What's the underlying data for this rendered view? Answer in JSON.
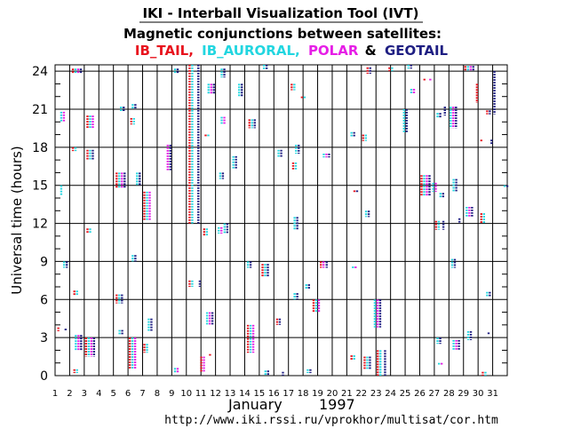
{
  "header": {
    "tool_title": "IKI - Interball Visualization Tool (IVT)",
    "subtitle": "Magnetic conjunctions between satellites:",
    "legend_ib_tail": "IB_TAIL,",
    "legend_ib_auroral": "IB_AURORAL,",
    "legend_polar": "POLAR",
    "legend_sep": "&",
    "legend_geotail": "GEOTAIL"
  },
  "footer": {
    "month_label": "January",
    "year_label": "1997",
    "url": "http://www.iki.rssi.ru/vprokhor/multisat/cor.htm"
  },
  "colors": {
    "IB_TAIL": "#e8141e",
    "IB_AURORAL": "#22d6e0",
    "POLAR": "#e61ee6",
    "GEOTAIL": "#1e1e82"
  },
  "chart_data": {
    "type": "scatter",
    "title": "Magnetic conjunctions between satellites:",
    "ylabel": "Universal time (hours)",
    "xlabel": "January 1997",
    "x_ticks": [
      1,
      2,
      3,
      4,
      5,
      6,
      7,
      8,
      9,
      10,
      11,
      12,
      13,
      14,
      15,
      16,
      17,
      18,
      19,
      20,
      21,
      22,
      23,
      24,
      25,
      26,
      27,
      28,
      29,
      30,
      31
    ],
    "y_ticks": [
      0,
      3,
      6,
      9,
      12,
      15,
      18,
      21,
      24
    ],
    "xlim": [
      1,
      32
    ],
    "ylim": [
      0,
      24.5
    ],
    "grid": true,
    "series_order": [
      "IB_TAIL",
      "IB_AURORAL",
      "POLAR",
      "GEOTAIL"
    ],
    "events": [
      {
        "day": 1.1,
        "start": 3.5,
        "end": 3.8,
        "sats": [
          "IB_TAIL"
        ]
      },
      {
        "day": 1.3,
        "start": 14.2,
        "end": 15.0,
        "sats": [
          "IB_AURORAL"
        ]
      },
      {
        "day": 1.3,
        "start": 20.0,
        "end": 20.8,
        "sats": [
          "IB_AURORAL",
          "POLAR"
        ]
      },
      {
        "day": 1.5,
        "start": 8.5,
        "end": 9.0,
        "sats": [
          "IB_AURORAL",
          "GEOTAIL"
        ]
      },
      {
        "day": 1.6,
        "start": 3.5,
        "end": 3.7,
        "sats": [
          "GEOTAIL"
        ]
      },
      {
        "day": 2.1,
        "start": 23.8,
        "end": 24.2,
        "sats": [
          "IB_TAIL",
          "IB_AURORAL",
          "POLAR",
          "GEOTAIL"
        ]
      },
      {
        "day": 2.1,
        "start": 17.7,
        "end": 18.0,
        "sats": [
          "IB_TAIL",
          "IB_AURORAL"
        ]
      },
      {
        "day": 2.2,
        "start": 6.3,
        "end": 6.7,
        "sats": [
          "IB_TAIL",
          "IB_AURORAL"
        ]
      },
      {
        "day": 2.3,
        "start": 2.0,
        "end": 3.2,
        "sats": [
          "IB_AURORAL",
          "POLAR",
          "GEOTAIL"
        ]
      },
      {
        "day": 2.2,
        "start": 0.2,
        "end": 0.5,
        "sats": [
          "IB_TAIL",
          "IB_AURORAL"
        ]
      },
      {
        "day": 3.1,
        "start": 19.5,
        "end": 20.5,
        "sats": [
          "IB_TAIL",
          "IB_AURORAL",
          "POLAR"
        ]
      },
      {
        "day": 3.1,
        "start": 17.0,
        "end": 17.8,
        "sats": [
          "IB_TAIL",
          "IB_AURORAL",
          "GEOTAIL"
        ]
      },
      {
        "day": 3.1,
        "start": 11.2,
        "end": 11.6,
        "sats": [
          "IB_TAIL",
          "IB_AURORAL"
        ]
      },
      {
        "day": 3.0,
        "start": 1.5,
        "end": 3.0,
        "sats": [
          "IB_TAIL",
          "IB_AURORAL",
          "POLAR",
          "GEOTAIL"
        ]
      },
      {
        "day": 5.1,
        "start": 14.8,
        "end": 16.0,
        "sats": [
          "IB_TAIL",
          "IB_AURORAL",
          "POLAR",
          "GEOTAIL"
        ]
      },
      {
        "day": 5.1,
        "start": 5.7,
        "end": 6.4,
        "sats": [
          "IB_TAIL",
          "IB_AURORAL",
          "GEOTAIL"
        ]
      },
      {
        "day": 5.3,
        "start": 3.2,
        "end": 3.6,
        "sats": [
          "IB_AURORAL",
          "GEOTAIL"
        ]
      },
      {
        "day": 5.4,
        "start": 20.8,
        "end": 21.2,
        "sats": [
          "IB_AURORAL",
          "GEOTAIL"
        ]
      },
      {
        "day": 6.0,
        "start": 0.5,
        "end": 3.0,
        "sats": [
          "IB_TAIL",
          "IB_AURORAL",
          "POLAR"
        ]
      },
      {
        "day": 6.1,
        "start": 19.8,
        "end": 20.3,
        "sats": [
          "IB_TAIL",
          "IB_AURORAL"
        ]
      },
      {
        "day": 6.2,
        "start": 21.0,
        "end": 21.4,
        "sats": [
          "IB_AURORAL",
          "GEOTAIL"
        ]
      },
      {
        "day": 6.2,
        "start": 9.0,
        "end": 9.5,
        "sats": [
          "IB_AURORAL",
          "GEOTAIL"
        ]
      },
      {
        "day": 6.5,
        "start": 15.0,
        "end": 16.0,
        "sats": [
          "IB_AURORAL",
          "GEOTAIL"
        ]
      },
      {
        "day": 7.0,
        "start": 12.2,
        "end": 14.5,
        "sats": [
          "IB_TAIL",
          "IB_AURORAL",
          "POLAR"
        ]
      },
      {
        "day": 7.0,
        "start": 1.8,
        "end": 2.5,
        "sats": [
          "IB_TAIL",
          "IB_AURORAL"
        ]
      },
      {
        "day": 7.3,
        "start": 3.5,
        "end": 4.5,
        "sats": [
          "IB_AURORAL",
          "GEOTAIL"
        ]
      },
      {
        "day": 8.6,
        "start": 16.2,
        "end": 18.2,
        "sats": [
          "POLAR",
          "GEOTAIL"
        ]
      },
      {
        "day": 9.1,
        "start": 23.8,
        "end": 24.2,
        "sats": [
          "IB_AURORAL",
          "GEOTAIL"
        ]
      },
      {
        "day": 9.1,
        "start": 0.2,
        "end": 0.6,
        "sats": [
          "IB_AURORAL",
          "POLAR"
        ]
      },
      {
        "day": 10.1,
        "start": 12.0,
        "end": 24.5,
        "sats": [
          "IB_TAIL",
          "IB_AURORAL"
        ]
      },
      {
        "day": 10.7,
        "start": 12.0,
        "end": 24.5,
        "sats": [
          "GEOTAIL"
        ]
      },
      {
        "day": 10.1,
        "start": 7.0,
        "end": 7.5,
        "sats": [
          "IB_TAIL",
          "IB_AURORAL"
        ]
      },
      {
        "day": 10.8,
        "start": 7.0,
        "end": 7.5,
        "sats": [
          "GEOTAIL"
        ]
      },
      {
        "day": 10.9,
        "start": 0.3,
        "end": 1.5,
        "sats": [
          "IB_TAIL",
          "POLAR"
        ]
      },
      {
        "day": 11.1,
        "start": 11.0,
        "end": 11.6,
        "sats": [
          "IB_TAIL",
          "IB_AURORAL"
        ]
      },
      {
        "day": 11.2,
        "start": 18.8,
        "end": 19.0,
        "sats": [
          "IB_TAIL",
          "IB_AURORAL"
        ]
      },
      {
        "day": 11.3,
        "start": 4.0,
        "end": 5.0,
        "sats": [
          "IB_AURORAL",
          "POLAR",
          "GEOTAIL"
        ]
      },
      {
        "day": 11.4,
        "start": 22.2,
        "end": 23.0,
        "sats": [
          "IB_AURORAL",
          "POLAR",
          "GEOTAIL"
        ]
      },
      {
        "day": 11.5,
        "start": 1.5,
        "end": 1.7,
        "sats": [
          "IB_TAIL"
        ]
      },
      {
        "day": 12.1,
        "start": 11.2,
        "end": 11.7,
        "sats": [
          "IB_AURORAL",
          "POLAR"
        ]
      },
      {
        "day": 12.2,
        "start": 15.5,
        "end": 16.0,
        "sats": [
          "IB_AURORAL",
          "GEOTAIL"
        ]
      },
      {
        "day": 12.3,
        "start": 19.8,
        "end": 20.4,
        "sats": [
          "IB_AURORAL",
          "POLAR"
        ]
      },
      {
        "day": 12.3,
        "start": 23.5,
        "end": 24.2,
        "sats": [
          "IB_AURORAL",
          "GEOTAIL"
        ]
      },
      {
        "day": 12.5,
        "start": 11.2,
        "end": 12.0,
        "sats": [
          "IB_AURORAL",
          "GEOTAIL"
        ]
      },
      {
        "day": 13.1,
        "start": 16.3,
        "end": 17.3,
        "sats": [
          "IB_AURORAL",
          "GEOTAIL"
        ]
      },
      {
        "day": 13.5,
        "start": 22.0,
        "end": 23.0,
        "sats": [
          "IB_AURORAL",
          "GEOTAIL"
        ]
      },
      {
        "day": 14.1,
        "start": 8.5,
        "end": 9.0,
        "sats": [
          "IB_AURORAL",
          "GEOTAIL"
        ]
      },
      {
        "day": 14.2,
        "start": 19.5,
        "end": 20.2,
        "sats": [
          "IB_TAIL",
          "IB_AURORAL",
          "GEOTAIL"
        ]
      },
      {
        "day": 14.1,
        "start": 1.8,
        "end": 4.0,
        "sats": [
          "IB_TAIL",
          "IB_AURORAL",
          "POLAR"
        ]
      },
      {
        "day": 15.1,
        "start": 7.8,
        "end": 8.8,
        "sats": [
          "IB_TAIL",
          "IB_AURORAL",
          "GEOTAIL"
        ]
      },
      {
        "day": 15.3,
        "start": 0.0,
        "end": 0.4,
        "sats": [
          "IB_AURORAL",
          "GEOTAIL"
        ]
      },
      {
        "day": 15.2,
        "start": 24.1,
        "end": 24.5,
        "sats": [
          "IB_AURORAL",
          "GEOTAIL"
        ]
      },
      {
        "day": 16.1,
        "start": 4.0,
        "end": 4.5,
        "sats": [
          "IB_TAIL",
          "GEOTAIL"
        ]
      },
      {
        "day": 16.2,
        "start": 17.2,
        "end": 17.8,
        "sats": [
          "IB_AURORAL",
          "GEOTAIL"
        ]
      },
      {
        "day": 16.5,
        "start": 0.0,
        "end": 0.3,
        "sats": [
          "GEOTAIL"
        ]
      },
      {
        "day": 17.1,
        "start": 22.5,
        "end": 23.0,
        "sats": [
          "IB_TAIL",
          "IB_AURORAL"
        ]
      },
      {
        "day": 17.2,
        "start": 16.2,
        "end": 16.8,
        "sats": [
          "IB_TAIL",
          "IB_AURORAL"
        ]
      },
      {
        "day": 17.3,
        "start": 11.5,
        "end": 12.5,
        "sats": [
          "IB_AURORAL",
          "GEOTAIL"
        ]
      },
      {
        "day": 17.3,
        "start": 6.0,
        "end": 6.5,
        "sats": [
          "IB_AURORAL",
          "GEOTAIL"
        ]
      },
      {
        "day": 17.4,
        "start": 17.5,
        "end": 18.2,
        "sats": [
          "IB_AURORAL",
          "GEOTAIL"
        ]
      },
      {
        "day": 17.8,
        "start": 21.8,
        "end": 22.0,
        "sats": [
          "IB_TAIL",
          "IB_AURORAL"
        ]
      },
      {
        "day": 18.1,
        "start": 6.8,
        "end": 7.2,
        "sats": [
          "IB_AURORAL",
          "GEOTAIL"
        ]
      },
      {
        "day": 18.2,
        "start": 0.2,
        "end": 0.5,
        "sats": [
          "IB_AURORAL",
          "GEOTAIL"
        ]
      },
      {
        "day": 18.6,
        "start": 5.0,
        "end": 6.0,
        "sats": [
          "IB_TAIL",
          "IB_AURORAL",
          "POLAR"
        ]
      },
      {
        "day": 19.1,
        "start": 8.5,
        "end": 9.0,
        "sats": [
          "IB_TAIL",
          "POLAR"
        ]
      },
      {
        "day": 19.3,
        "start": 17.2,
        "end": 17.5,
        "sats": [
          "IB_AURORAL",
          "POLAR",
          "GEOTAIL"
        ]
      },
      {
        "day": 19.5,
        "start": 8.5,
        "end": 9.0,
        "sats": [
          "GEOTAIL"
        ]
      },
      {
        "day": 21.2,
        "start": 18.8,
        "end": 19.2,
        "sats": [
          "IB_AURORAL",
          "GEOTAIL"
        ]
      },
      {
        "day": 21.3,
        "start": 8.4,
        "end": 8.6,
        "sats": [
          "IB_AURORAL",
          "POLAR"
        ]
      },
      {
        "day": 21.4,
        "start": 14.4,
        "end": 14.6,
        "sats": [
          "IB_TAIL",
          "GEOTAIL"
        ]
      },
      {
        "day": 21.2,
        "start": 1.2,
        "end": 1.6,
        "sats": [
          "IB_TAIL",
          "IB_AURORAL"
        ]
      },
      {
        "day": 22.0,
        "start": 18.5,
        "end": 19.0,
        "sats": [
          "IB_TAIL",
          "IB_AURORAL"
        ]
      },
      {
        "day": 22.1,
        "start": 0.5,
        "end": 1.5,
        "sats": [
          "IB_TAIL",
          "IB_AURORAL",
          "GEOTAIL"
        ]
      },
      {
        "day": 22.2,
        "start": 12.5,
        "end": 13.0,
        "sats": [
          "IB_AURORAL",
          "GEOTAIL"
        ]
      },
      {
        "day": 22.3,
        "start": 23.8,
        "end": 24.3,
        "sats": [
          "IB_TAIL",
          "GEOTAIL"
        ]
      },
      {
        "day": 22.8,
        "start": 3.8,
        "end": 6.0,
        "sats": [
          "IB_AURORAL",
          "POLAR",
          "GEOTAIL"
        ]
      },
      {
        "day": 23.0,
        "start": 0.0,
        "end": 2.0,
        "sats": [
          "IB_TAIL",
          "IB_AURORAL"
        ]
      },
      {
        "day": 23.5,
        "start": 0.0,
        "end": 2.0,
        "sats": [
          "GEOTAIL"
        ]
      },
      {
        "day": 23.8,
        "start": 24.0,
        "end": 24.3,
        "sats": [
          "IB_TAIL",
          "IB_AURORAL"
        ]
      },
      {
        "day": 24.8,
        "start": 19.2,
        "end": 21.0,
        "sats": [
          "IB_AURORAL",
          "GEOTAIL"
        ]
      },
      {
        "day": 25.1,
        "start": 24.2,
        "end": 24.5,
        "sats": [
          "IB_AURORAL",
          "GEOTAIL"
        ]
      },
      {
        "day": 25.3,
        "start": 22.2,
        "end": 22.6,
        "sats": [
          "IB_AURORAL",
          "POLAR"
        ]
      },
      {
        "day": 26.0,
        "start": 14.2,
        "end": 15.8,
        "sats": [
          "IB_TAIL",
          "IB_AURORAL",
          "POLAR",
          "GEOTAIL"
        ]
      },
      {
        "day": 26.2,
        "start": 23.2,
        "end": 23.4,
        "sats": [
          "IB_TAIL"
        ]
      },
      {
        "day": 26.6,
        "start": 23.2,
        "end": 23.4,
        "sats": [
          "POLAR"
        ]
      },
      {
        "day": 26.8,
        "start": 14.5,
        "end": 15.2,
        "sats": [
          "IB_AURORAL",
          "POLAR"
        ]
      },
      {
        "day": 27.0,
        "start": 11.5,
        "end": 12.2,
        "sats": [
          "IB_TAIL",
          "IB_AURORAL"
        ]
      },
      {
        "day": 27.1,
        "start": 20.3,
        "end": 20.7,
        "sats": [
          "IB_AURORAL",
          "GEOTAIL"
        ]
      },
      {
        "day": 27.1,
        "start": 2.5,
        "end": 3.0,
        "sats": [
          "IB_AURORAL",
          "GEOTAIL"
        ]
      },
      {
        "day": 27.2,
        "start": 0.8,
        "end": 1.0,
        "sats": [
          "IB_AURORAL",
          "POLAR"
        ]
      },
      {
        "day": 27.3,
        "start": 14.0,
        "end": 14.4,
        "sats": [
          "IB_AURORAL",
          "GEOTAIL"
        ]
      },
      {
        "day": 27.5,
        "start": 11.5,
        "end": 12.2,
        "sats": [
          "GEOTAIL"
        ]
      },
      {
        "day": 27.6,
        "start": 20.5,
        "end": 21.2,
        "sats": [
          "GEOTAIL"
        ]
      },
      {
        "day": 28.0,
        "start": 19.5,
        "end": 21.2,
        "sats": [
          "IB_AURORAL",
          "POLAR",
          "GEOTAIL"
        ]
      },
      {
        "day": 28.1,
        "start": 8.5,
        "end": 9.2,
        "sats": [
          "IB_AURORAL",
          "GEOTAIL"
        ]
      },
      {
        "day": 28.2,
        "start": 14.5,
        "end": 15.5,
        "sats": [
          "IB_AURORAL",
          "GEOTAIL"
        ]
      },
      {
        "day": 28.2,
        "start": 2.0,
        "end": 2.8,
        "sats": [
          "IB_AURORAL",
          "POLAR",
          "GEOTAIL"
        ]
      },
      {
        "day": 28.6,
        "start": 12.0,
        "end": 12.4,
        "sats": [
          "GEOTAIL"
        ]
      },
      {
        "day": 29.0,
        "start": 24.0,
        "end": 24.4,
        "sats": [
          "IB_TAIL",
          "IB_AURORAL",
          "POLAR",
          "GEOTAIL"
        ]
      },
      {
        "day": 29.1,
        "start": 12.5,
        "end": 13.3,
        "sats": [
          "IB_AURORAL",
          "POLAR",
          "GEOTAIL"
        ]
      },
      {
        "day": 29.2,
        "start": 2.8,
        "end": 3.5,
        "sats": [
          "IB_AURORAL",
          "GEOTAIL"
        ]
      },
      {
        "day": 29.8,
        "start": 21.5,
        "end": 23.0,
        "sats": [
          "IB_TAIL"
        ]
      },
      {
        "day": 30.1,
        "start": 12.0,
        "end": 12.8,
        "sats": [
          "IB_TAIL",
          "IB_AURORAL"
        ]
      },
      {
        "day": 30.2,
        "start": 0.0,
        "end": 0.3,
        "sats": [
          "IB_TAIL",
          "IB_AURORAL"
        ]
      },
      {
        "day": 30.1,
        "start": 18.4,
        "end": 18.6,
        "sats": [
          "IB_TAIL"
        ]
      },
      {
        "day": 30.5,
        "start": 6.2,
        "end": 6.6,
        "sats": [
          "IB_AURORAL",
          "GEOTAIL"
        ]
      },
      {
        "day": 30.5,
        "start": 20.6,
        "end": 20.9,
        "sats": [
          "IB_TAIL",
          "GEOTAIL"
        ]
      },
      {
        "day": 30.8,
        "start": 18.2,
        "end": 18.6,
        "sats": [
          "GEOTAIL"
        ]
      },
      {
        "day": 30.6,
        "start": 3.2,
        "end": 3.4,
        "sats": [
          "GEOTAIL"
        ]
      },
      {
        "day": 31.0,
        "start": 20.6,
        "end": 24.0,
        "sats": [
          "GEOTAIL"
        ]
      },
      {
        "day": 31.7,
        "start": 14.8,
        "end": 15.0,
        "sats": [
          "IB_AURORAL",
          "GEOTAIL"
        ]
      }
    ]
  }
}
